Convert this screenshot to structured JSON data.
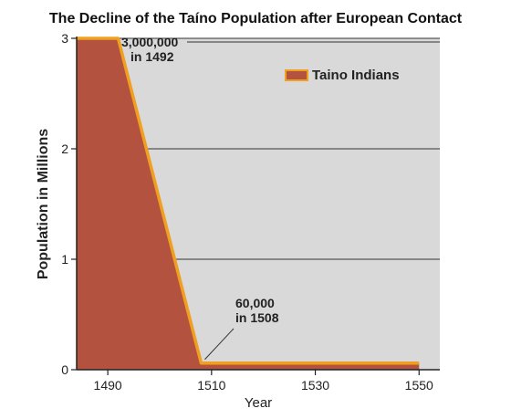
{
  "chart_data": {
    "type": "area",
    "title": "The Decline of the Taíno Population after European Contact",
    "xlabel": "Year",
    "ylabel": "Population in Millions",
    "x_ticks": [
      1490,
      1510,
      1530,
      1550
    ],
    "y_ticks": [
      0,
      1,
      2,
      3
    ],
    "xlim": [
      1484,
      1554
    ],
    "ylim": [
      0,
      3
    ],
    "series": [
      {
        "name": "Taino Indians",
        "color": "#b3533f",
        "line_color": "#f0a020",
        "x": [
          1484,
          1490,
          1492,
          1508,
          1550
        ],
        "y": [
          3.0,
          3.0,
          3.0,
          0.06,
          0.06
        ]
      }
    ],
    "annotations": [
      {
        "line1": "3,000,000",
        "line2": "in 1492",
        "x": 1492,
        "y": 3.0
      },
      {
        "line1": "60,000",
        "line2": "in 1508",
        "x": 1508,
        "y": 0.06
      }
    ],
    "legend_position": "top-right",
    "grid": true,
    "colors": {
      "plot_bg": "#d9d9d9",
      "grid": "#333333"
    }
  }
}
